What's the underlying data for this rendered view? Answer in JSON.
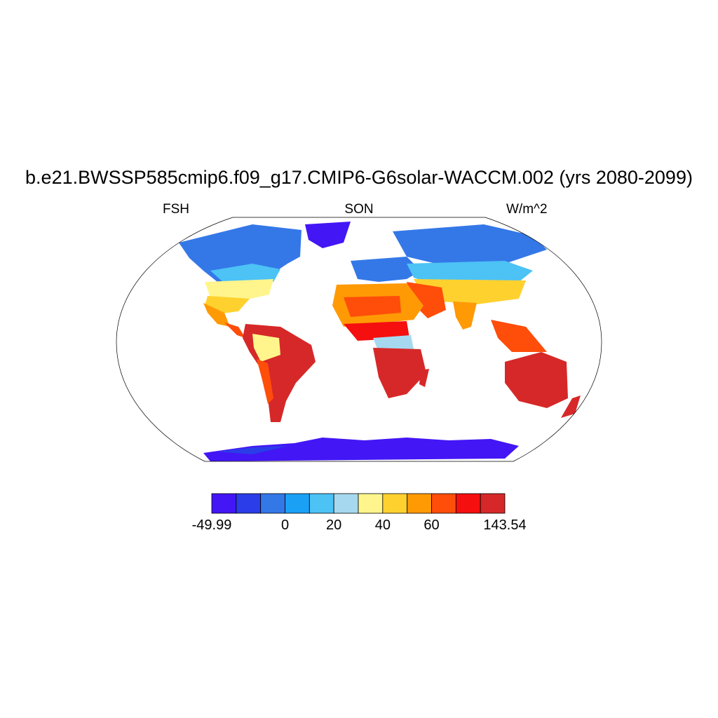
{
  "title": "b.e21.BWSSP585cmip6.f09_g17.CMIP6-G6solar-WACCM.002 (yrs 2080-2099)",
  "left_label": "FSH",
  "center_label": "SON",
  "right_label": "W/m^2",
  "colorbar": {
    "colors": [
      "#4316f5",
      "#2a3de8",
      "#3478e8",
      "#1aa0f5",
      "#4cc2f5",
      "#a6d9f0",
      "#fff58c",
      "#ffd12e",
      "#ff9a05",
      "#ff4d0a",
      "#f50f0f",
      "#d62828"
    ],
    "min_label": "-49.99",
    "max_label": "143.54",
    "ticks": [
      {
        "label": "0",
        "boundary": 3
      },
      {
        "label": "20",
        "boundary": 5
      },
      {
        "label": "40",
        "boundary": 7
      },
      {
        "label": "60",
        "boundary": 9
      }
    ]
  },
  "colors": {
    "ocean_missing": "#ffffff",
    "coastline": "#000000"
  }
}
